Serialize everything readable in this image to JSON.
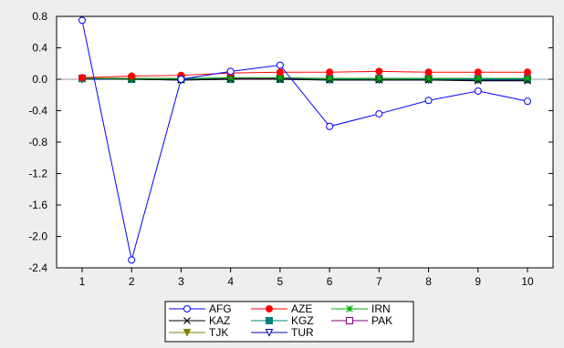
{
  "chart_data": {
    "type": "line",
    "title": "",
    "xlabel": "",
    "ylabel": "",
    "x": [
      1,
      2,
      3,
      4,
      5,
      6,
      7,
      8,
      9,
      10
    ],
    "xticks": [
      "1",
      "2",
      "3",
      "4",
      "5",
      "6",
      "7",
      "8",
      "9",
      "10"
    ],
    "ylim": [
      -2.4,
      0.8
    ],
    "yticks": [
      "0.8",
      "0.4",
      "0.0",
      "-0.4",
      "-0.8",
      "-1.2",
      "-1.6",
      "-2.0",
      "-2.4"
    ],
    "grid": false,
    "legend_position": "bottom",
    "series": [
      {
        "name": "AFG",
        "color": "#0000ff",
        "marker": "circle-open",
        "values": [
          0.75,
          -2.3,
          0.0,
          0.1,
          0.18,
          -0.6,
          -0.44,
          -0.27,
          -0.15,
          -0.28
        ]
      },
      {
        "name": "AZE",
        "color": "#ff0000",
        "marker": "circle-filled",
        "values": [
          0.02,
          0.04,
          0.05,
          0.08,
          0.09,
          0.09,
          0.1,
          0.09,
          0.09,
          0.09
        ]
      },
      {
        "name": "IRN",
        "color": "#00aa00",
        "marker": "star",
        "values": [
          0.01,
          0.01,
          0.01,
          0.02,
          0.02,
          0.01,
          0.01,
          0.01,
          0.01,
          0.01
        ]
      },
      {
        "name": "KAZ",
        "color": "#000000",
        "marker": "x",
        "values": [
          0.01,
          0.0,
          -0.01,
          0.0,
          0.0,
          -0.01,
          -0.01,
          -0.01,
          -0.02,
          -0.02
        ]
      },
      {
        "name": "KGZ",
        "color": "#008080",
        "marker": "square-filled",
        "values": [
          0.01,
          0.0,
          0.0,
          0.0,
          0.0,
          0.0,
          0.0,
          0.0,
          0.0,
          0.0
        ]
      },
      {
        "name": "PAK",
        "color": "#800080",
        "marker": "square-open",
        "values": [
          0.01,
          0.01,
          0.01,
          0.01,
          0.01,
          0.01,
          0.01,
          0.01,
          0.01,
          0.01
        ]
      },
      {
        "name": "TJK",
        "color": "#808000",
        "marker": "triangle-down-filled",
        "values": [
          0.01,
          0.01,
          0.0,
          0.01,
          0.01,
          0.0,
          0.0,
          0.0,
          0.0,
          0.0
        ]
      },
      {
        "name": "TUR",
        "color": "#0000aa",
        "marker": "triangle-down-open",
        "values": [
          0.0,
          0.0,
          -0.01,
          0.0,
          0.0,
          -0.01,
          -0.01,
          -0.01,
          -0.01,
          -0.01
        ]
      }
    ]
  }
}
